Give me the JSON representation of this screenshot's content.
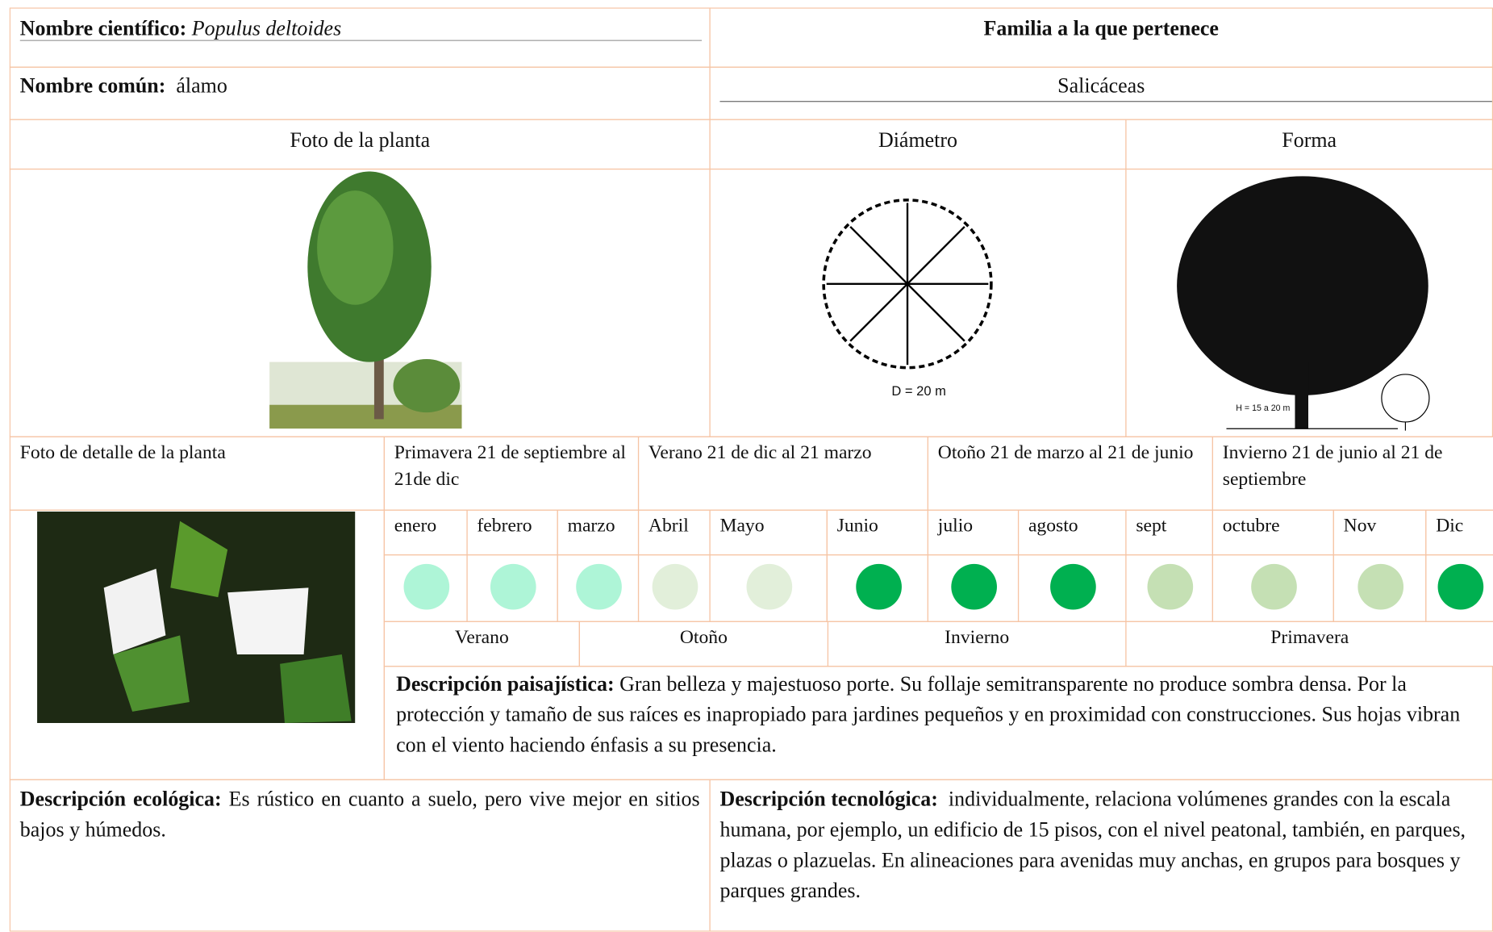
{
  "header": {
    "scientific_name_label": "Nombre científico:",
    "scientific_name": "Populus deltoides",
    "common_name_label": "Nombre común:",
    "common_name": "álamo",
    "family_label": "Familia a la que pertenece",
    "family": "Salicáceas"
  },
  "sections": {
    "photo": "Foto de la planta",
    "diameter": "Diámetro",
    "form": "Forma",
    "detail_photo": "Foto de detalle de la planta"
  },
  "drawings": {
    "diameter_note": "D = 20 m",
    "form_note": "H = 15 a 20 m"
  },
  "seasons": [
    "Primavera 21 de septiembre al 21de dic",
    "Verano 21 de dic al 21 marzo",
    "Otoño 21 de marzo al 21 de junio",
    "Invierno 21 de junio al 21 de septiembre"
  ],
  "months": [
    {
      "name": "enero",
      "color": "#aef5d7"
    },
    {
      "name": "febrero",
      "color": "#aef5d7"
    },
    {
      "name": "marzo",
      "color": "#aef5d7"
    },
    {
      "name": "Abril",
      "color": "#e2efda"
    },
    {
      "name": "Mayo",
      "color": "#e2efda"
    },
    {
      "name": "Junio",
      "color": "#00b050"
    },
    {
      "name": "julio",
      "color": "#00b050"
    },
    {
      "name": "agosto",
      "color": "#00b050"
    },
    {
      "name": "sept",
      "color": "#c5e0b4"
    },
    {
      "name": "octubre",
      "color": "#c5e0b4"
    },
    {
      "name": "Nov",
      "color": "#c5e0b4"
    },
    {
      "name": "Dic",
      "color": "#00b050"
    }
  ],
  "season_row": [
    "Verano",
    "Otoño",
    "Invierno",
    "Primavera"
  ],
  "descriptions": {
    "landscape_label": "Descripción paisajística:",
    "landscape": "Gran belleza y majestuoso porte. Su follaje semitransparente no produce sombra densa. Por la protección y tamaño de sus raíces es inapropiado para jardines pequeños y en proximidad con construcciones. Sus hojas vibran con el viento haciendo énfasis a su presencia.",
    "ecological_label": "Descripción ecológica:",
    "ecological": "Es rústico en cuanto a suelo, pero vive mejor en sitios bajos y húmedos.",
    "technological_label": "Descripción tecnológica:",
    "technological": "individualmente, relaciona volúmenes grandes con la escala humana, por ejemplo, un edificio de 15 pisos, con el nivel peatonal, también, en parques, plazas o plazuelas. En alineaciones para avenidas muy anchas, en grupos para bosques y parques grandes."
  }
}
